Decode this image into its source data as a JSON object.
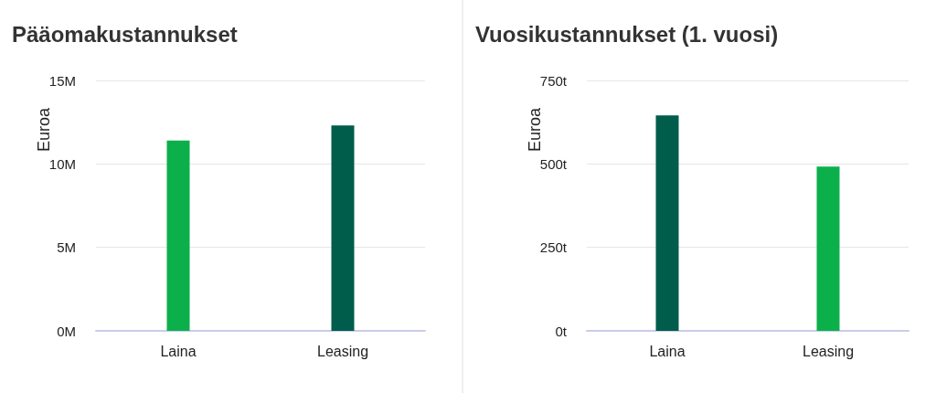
{
  "chart_data": [
    {
      "type": "bar",
      "title": "Pääomakustannukset",
      "ylabel": "Euroa",
      "categories": [
        "Laina",
        "Leasing"
      ],
      "values": [
        11.4,
        12.3
      ],
      "colors": [
        "#0bb04b",
        "#005c4b"
      ],
      "ylim": [
        0,
        15
      ],
      "yticks": [
        {
          "value": 0,
          "label": "0M"
        },
        {
          "value": 5,
          "label": "5M"
        },
        {
          "value": 10,
          "label": "10M"
        },
        {
          "value": 15,
          "label": "15M"
        }
      ],
      "grid": "y"
    },
    {
      "type": "bar",
      "title": "Vuosikustannukset (1. vuosi)",
      "ylabel": "Euroa",
      "categories": [
        "Laina",
        "Leasing"
      ],
      "values": [
        645,
        492
      ],
      "colors": [
        "#005c4b",
        "#0bb04b"
      ],
      "ylim": [
        0,
        750
      ],
      "yticks": [
        {
          "value": 0,
          "label": "0t"
        },
        {
          "value": 250,
          "label": "250t"
        },
        {
          "value": 500,
          "label": "500t"
        },
        {
          "value": 750,
          "label": "750t"
        }
      ],
      "grid": "y"
    }
  ]
}
